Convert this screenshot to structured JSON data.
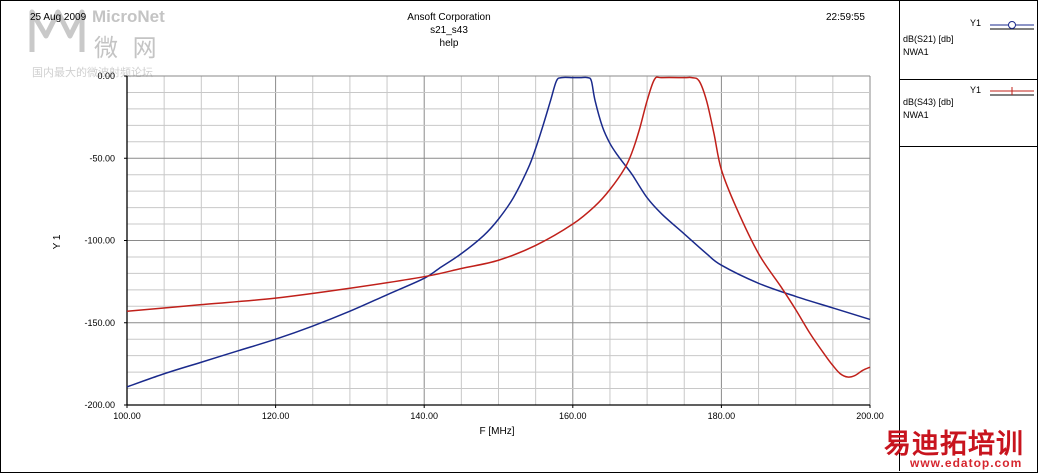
{
  "header": {
    "date": "25 Aug 2009",
    "company": "Ansoft Corporation",
    "plot_name": "s21_s43",
    "project": "help",
    "time": "22:59:55"
  },
  "legend": [
    {
      "axis": "Y1",
      "trace": "dB(S21) [db]",
      "solution": "NWA1",
      "color": "#1a2a8c",
      "marker": "circle-icon"
    },
    {
      "axis": "Y1",
      "trace": "dB(S43) [db]",
      "solution": "NWA1",
      "color": "#c0201a",
      "marker": "plus-icon"
    }
  ],
  "watermarks": {
    "top_left_brand": "MicroNet",
    "top_left_cjk": "微 网",
    "top_left_sub": "国内最大的微波射频论坛",
    "bottom_right_cjk": "易迪拓培训",
    "bottom_right_url": "www.edatop.com"
  },
  "chart_data": {
    "type": "line",
    "xlabel": "F [MHz]",
    "ylabel": "Y 1",
    "xlim": [
      100,
      200
    ],
    "ylim": [
      -200,
      0
    ],
    "x_ticks": [
      "100.00",
      "120.00",
      "140.00",
      "160.00",
      "180.00",
      "200.00"
    ],
    "y_ticks": [
      "0.00",
      "-50.00",
      "-100.00",
      "-150.00",
      "-200.00"
    ],
    "grid": true,
    "legend_position": "right",
    "series": [
      {
        "name": "dB(S21) [db]",
        "color": "#1a2a8c",
        "x": [
          100,
          105,
          110,
          115,
          120,
          125,
          130,
          135,
          140,
          142,
          145,
          148,
          150,
          152,
          154,
          155,
          156,
          157,
          157.8,
          158.5,
          160,
          161,
          162,
          162.5,
          163,
          164,
          165,
          166,
          167,
          168,
          170,
          172,
          175,
          178,
          180,
          185,
          190,
          195,
          200
        ],
        "y": [
          -189,
          -181,
          -174,
          -167,
          -160,
          -152,
          -143,
          -133,
          -123,
          -117,
          -108,
          -97,
          -87,
          -74,
          -56,
          -44,
          -30,
          -15,
          -3,
          -1,
          -1,
          -1,
          -1,
          -3,
          -15,
          -31,
          -41,
          -48,
          -54,
          -60,
          -74,
          -84,
          -96,
          -108,
          -115,
          -126,
          -134,
          -141,
          -148
        ]
      },
      {
        "name": "dB(S43) [db]",
        "color": "#c0201a",
        "x": [
          100,
          110,
          120,
          130,
          140,
          145,
          150,
          155,
          160,
          163,
          165,
          167,
          168,
          169,
          170,
          171,
          172,
          175,
          176,
          177,
          178,
          179,
          180,
          182,
          185,
          188,
          190,
          192,
          194,
          195,
          196,
          197,
          198,
          199,
          200
        ],
        "y": [
          -143,
          -139,
          -135,
          -129,
          -122,
          -117,
          -112,
          -103,
          -90,
          -79,
          -69,
          -56,
          -46,
          -32,
          -15,
          -2,
          -1,
          -1,
          -1,
          -3,
          -15,
          -35,
          -57,
          -80,
          -108,
          -128,
          -142,
          -157,
          -170,
          -176,
          -181,
          -183,
          -182,
          -179,
          -177
        ]
      }
    ]
  }
}
